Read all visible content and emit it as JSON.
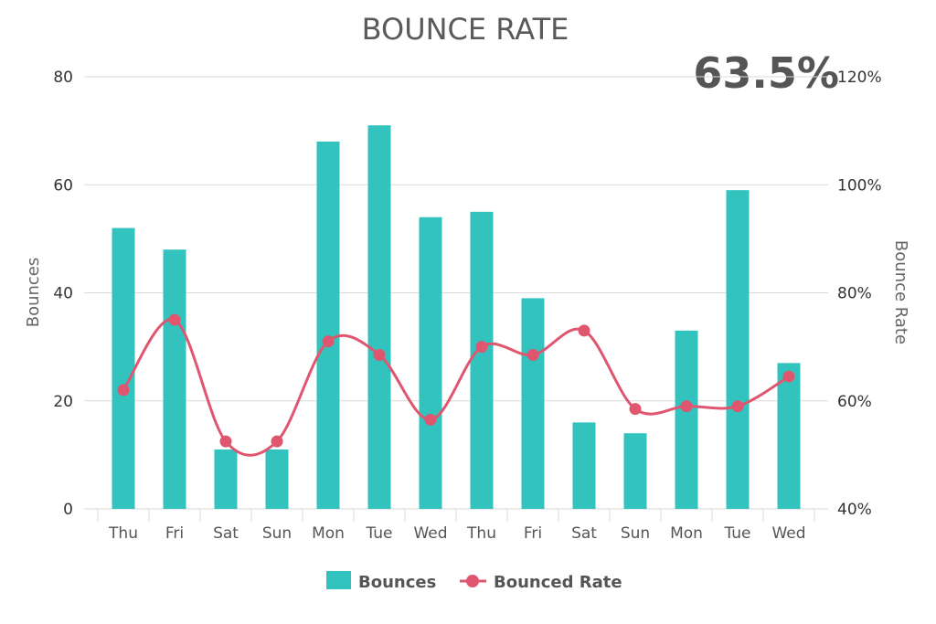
{
  "chart_data": {
    "type": "bar",
    "title": "BOUNCE RATE",
    "kpi": "63.5%",
    "categories": [
      "Thu",
      "Fri",
      "Sat",
      "Sun",
      "Mon",
      "Tue",
      "Wed",
      "Thu",
      "Fri",
      "Sat",
      "Sun",
      "Mon",
      "Tue",
      "Wed"
    ],
    "series": [
      {
        "name": "Bounces",
        "type": "bar",
        "axis": "left",
        "color": "#33c3bf",
        "values": [
          52,
          48,
          11,
          11,
          68,
          71,
          54,
          55,
          39,
          16,
          14,
          33,
          59,
          27
        ]
      },
      {
        "name": "Bounced Rate",
        "type": "line",
        "axis": "right",
        "color": "#e0566e",
        "values": [
          62,
          75,
          52.5,
          52.5,
          71,
          68.5,
          56.5,
          70,
          68.5,
          73,
          58.5,
          59,
          59,
          64.5
        ]
      }
    ],
    "ylabel": "Bounces",
    "ylabel_right": "Bounce Rate",
    "ylim": [
      0,
      80
    ],
    "yticks": [
      "0",
      "20",
      "40",
      "60",
      "80"
    ],
    "ylim_right": [
      40,
      120
    ],
    "yticks_right": [
      "40%",
      "60%",
      "80%",
      "100%",
      "120%"
    ],
    "grid": true,
    "legend_position": "bottom-center"
  }
}
